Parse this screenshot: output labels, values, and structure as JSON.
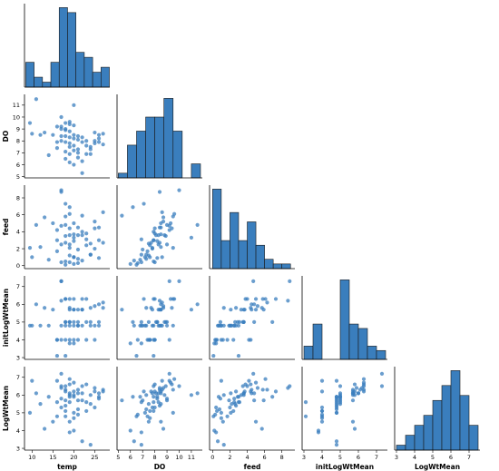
{
  "chart_data": {
    "type": "scatter",
    "layout": "pairplot-lower-triangle",
    "variables": [
      "temp",
      "DO",
      "feed",
      "initLogWtMean",
      "LogWtMean"
    ],
    "axes": {
      "temp": {
        "range": [
          8.2,
          28.6
        ],
        "ticks": [
          10,
          15,
          20,
          25
        ]
      },
      "DO": {
        "range": [
          4.9,
          11.9
        ],
        "ticks": [
          5,
          6,
          7,
          8,
          9,
          10,
          11
        ]
      },
      "feed": {
        "range": [
          -0.35,
          9.5
        ],
        "ticks": [
          0,
          2,
          4,
          6,
          8
        ]
      },
      "initLogWtMean": {
        "range": [
          2.9,
          7.6
        ],
        "ticks": [
          3,
          4,
          5,
          6,
          7
        ]
      },
      "LogWtMean": {
        "range": [
          2.9,
          7.6
        ],
        "ticks": [
          3,
          4,
          5,
          6,
          7
        ]
      }
    },
    "histograms": {
      "temp": {
        "edges": [
          8.5,
          10.5,
          12.5,
          14.5,
          16.5,
          18.5,
          20.5,
          22.5,
          24.5,
          26.5,
          28.5
        ],
        "counts": [
          5,
          2,
          1,
          5,
          16,
          15,
          7,
          6,
          3,
          4
        ]
      },
      "DO": {
        "edges": [
          5.0,
          5.75,
          6.5,
          7.25,
          8.0,
          8.75,
          9.5,
          10.25,
          11.0,
          11.75
        ],
        "counts": [
          1,
          7,
          10,
          13,
          13,
          17,
          10,
          0,
          3
        ]
      },
      "feed": {
        "edges": [
          0,
          1,
          2,
          3,
          4,
          5,
          6,
          7,
          8,
          9
        ],
        "counts": [
          17,
          6,
          12,
          6,
          10,
          5,
          2,
          1,
          1
        ]
      },
      "initLogWtMean": {
        "edges": [
          3.0,
          3.5,
          4.0,
          4.5,
          5.0,
          5.5,
          6.0,
          6.5,
          7.0,
          7.5
        ],
        "counts": [
          3,
          8,
          0,
          0,
          18,
          8,
          7,
          3,
          2
        ]
      },
      "LogWtMean": {
        "edges": [
          3.0,
          3.5,
          4.0,
          4.5,
          5.0,
          5.5,
          6.0,
          6.5,
          7.0,
          7.5
        ],
        "counts": [
          1,
          3,
          5,
          7,
          10,
          13,
          16,
          11,
          5
        ]
      }
    },
    "points": {
      "temp": [
        9.5,
        10,
        11,
        12,
        13,
        14,
        15,
        16,
        16,
        17,
        17,
        17,
        18,
        18,
        18,
        18,
        18,
        19,
        19,
        19,
        19,
        19,
        19,
        20,
        20,
        20,
        20,
        20,
        21,
        21,
        21,
        21,
        22,
        22,
        22,
        23,
        23,
        24,
        24,
        25,
        25,
        26,
        26,
        27,
        27,
        17,
        18,
        19,
        20,
        21,
        17,
        18,
        19,
        16,
        22,
        23,
        24,
        25,
        26,
        20
      ],
      "DO": [
        9.5,
        8.6,
        11.5,
        8.5,
        8.7,
        6.8,
        8.5,
        9.2,
        7.9,
        10.0,
        9.0,
        8.0,
        9.5,
        9.0,
        8.4,
        7.9,
        6.5,
        9.6,
        8.8,
        8.3,
        7.5,
        6.9,
        9.4,
        8.5,
        8.2,
        7.6,
        6.0,
        9.3,
        8.1,
        7.3,
        8.4,
        7.0,
        7.9,
        6.3,
        8.3,
        7.6,
        8.0,
        6.9,
        7.5,
        8.7,
        8.0,
        8.5,
        7.9,
        8.6,
        7.7,
        9.2,
        8.9,
        7.8,
        7.2,
        6.6,
        8.4,
        7.1,
        6.2,
        7.4,
        5.3,
        6.9,
        7.3,
        7.8,
        8.2,
        11.0
      ],
      "feed": [
        2.1,
        1.0,
        4.8,
        2.2,
        5.7,
        0.7,
        5.0,
        4.2,
        3.0,
        8.9,
        2.5,
        0.4,
        5.8,
        4.8,
        2.7,
        0.5,
        0.1,
        6.1,
        3.6,
        2.5,
        1.2,
        0.4,
        4.4,
        3.7,
        2.9,
        1.0,
        0.2,
        5.0,
        3.6,
        0.8,
        4.5,
        1.9,
        4.0,
        0.6,
        3.6,
        2.4,
        3.8,
        1.3,
        2.6,
        5.2,
        4.4,
        4.5,
        3.0,
        6.3,
        2.7,
        4.7,
        3.5,
        2.1,
        1.0,
        0.3,
        8.7,
        7.3,
        6.9,
        1.7,
        5.9,
        3.1,
        1.3,
        2.0,
        0.9,
        3.3
      ],
      "initLogWtMean": [
        4.8,
        4.8,
        6.0,
        4.8,
        5.8,
        4.8,
        5.7,
        4.0,
        3.1,
        7.3,
        4.8,
        4.0,
        6.3,
        5.0,
        4.8,
        4.0,
        3.1,
        6.3,
        5.0,
        4.8,
        4.0,
        3.8,
        5.8,
        5.7,
        5.0,
        4.0,
        3.8,
        6.3,
        5.0,
        4.8,
        5.7,
        4.8,
        6.3,
        4.8,
        5.7,
        4.0,
        6.3,
        4.8,
        5.0,
        5.9,
        4.0,
        6.0,
        4.8,
        6.1,
        5.8,
        7.3,
        5.0,
        5.7,
        4.8,
        4.0,
        6.2,
        6.3,
        5.0,
        4.0,
        5.7,
        5.0,
        5.8,
        4.8,
        5.0,
        5.7
      ],
      "LogWtMean": [
        5.0,
        6.8,
        6.1,
        5.5,
        4.1,
        5.9,
        4.5,
        6.8,
        5.6,
        6.5,
        5.8,
        5.3,
        6.3,
        5.7,
        5.4,
        5.1,
        4.8,
        6.9,
        6.0,
        5.6,
        4.5,
        3.9,
        6.6,
        6.2,
        5.9,
        4.7,
        4.0,
        6.7,
        6.1,
        5.2,
        6.3,
        5.7,
        6.5,
        3.4,
        6.1,
        5.1,
        6.6,
        3.2,
        5.5,
        6.4,
        6.2,
        6.1,
        5.9,
        6.3,
        6.2,
        7.2,
        6.5,
        6.1,
        5.0,
        4.9,
        6.4,
        6.2,
        5.9,
        4.8,
        5.7,
        5.6,
        6.0,
        5.3,
        5.8,
        6.0
      ]
    }
  }
}
